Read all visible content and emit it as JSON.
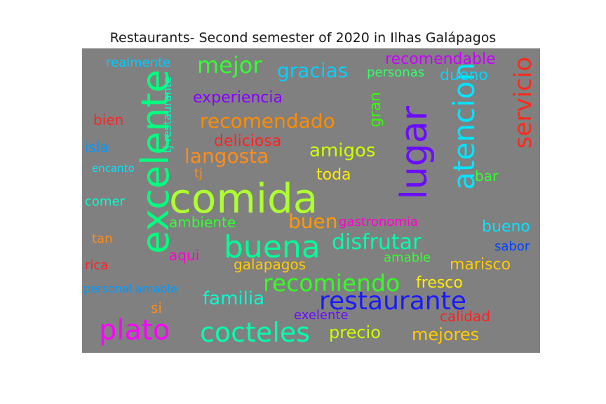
{
  "chart_data": {
    "type": "wordcloud",
    "title": "Restaurants- Second semester of 2020 in Ilhas Galápagos",
    "words": [
      {
        "text": "comida",
        "color": "#adff2f"
      },
      {
        "text": "excelente",
        "color": "#00ff7f"
      },
      {
        "text": "lugar",
        "color": "#6a0dff"
      },
      {
        "text": "atencion",
        "color": "#00e5ff"
      },
      {
        "text": "servicio",
        "color": "#ff2a1a"
      },
      {
        "text": "buena",
        "color": "#00ff99"
      },
      {
        "text": "restaurante",
        "color": "#1a1aff"
      },
      {
        "text": "plato",
        "color": "#ff00ff"
      },
      {
        "text": "cocteles",
        "color": "#00ffb0"
      },
      {
        "text": "recomiendo",
        "color": "#33ff22"
      },
      {
        "text": "disfrutar",
        "color": "#00ffb0"
      },
      {
        "text": "mejor",
        "color": "#33ff33"
      },
      {
        "text": "langosta",
        "color": "#ff8c1a"
      },
      {
        "text": "recomendado",
        "color": "#ff8c00"
      },
      {
        "text": "gracias",
        "color": "#00d0ff"
      },
      {
        "text": "amigos",
        "color": "#ccff00"
      },
      {
        "text": "familia",
        "color": "#00ffd0"
      },
      {
        "text": "buen",
        "color": "#ff9900"
      },
      {
        "text": "recomendable",
        "color": "#cc00ff"
      },
      {
        "text": "gran",
        "color": "#33ff00"
      },
      {
        "text": "experiencia",
        "color": "#8800ff"
      },
      {
        "text": "deliciosa",
        "color": "#ff2222"
      },
      {
        "text": "mejores",
        "color": "#ffcc00"
      },
      {
        "text": "precio",
        "color": "#ccff00"
      },
      {
        "text": "marisco",
        "color": "#ffcc00"
      },
      {
        "text": "bueno",
        "color": "#00e5ff"
      },
      {
        "text": "dueno",
        "color": "#00d5ff"
      },
      {
        "text": "toda",
        "color": "#ffee00"
      },
      {
        "text": "fresco",
        "color": "#ffee00"
      },
      {
        "text": "ambiente",
        "color": "#33ff33"
      },
      {
        "text": "galapagos",
        "color": "#ffcc00"
      },
      {
        "text": "calidad",
        "color": "#ff2222"
      },
      {
        "text": "exelente",
        "color": "#6a0dff"
      },
      {
        "text": "gastronomia",
        "color": "#ff00cc"
      },
      {
        "text": "amable",
        "color": "#33ff33"
      },
      {
        "text": "personas",
        "color": "#33ff66"
      },
      {
        "text": "tj restaurante",
        "color": "#00ffcc"
      },
      {
        "text": "aqui",
        "color": "#ff00cc"
      },
      {
        "text": "realmente",
        "color": "#00ccff"
      },
      {
        "text": "bien",
        "color": "#ff2222"
      },
      {
        "text": "isla",
        "color": "#0099ff"
      },
      {
        "text": "encanto",
        "color": "#00e5ff"
      },
      {
        "text": "tj",
        "color": "#ff8c1a"
      },
      {
        "text": "bar",
        "color": "#33ff33"
      },
      {
        "text": "comer",
        "color": "#00ffcc"
      },
      {
        "text": "tan",
        "color": "#ff8c1a"
      },
      {
        "text": "rica",
        "color": "#ff2222"
      },
      {
        "text": "sabor",
        "color": "#0044ff"
      },
      {
        "text": "personal amable",
        "color": "#0099ff"
      },
      {
        "text": "si",
        "color": "#ff8c1a"
      }
    ]
  }
}
